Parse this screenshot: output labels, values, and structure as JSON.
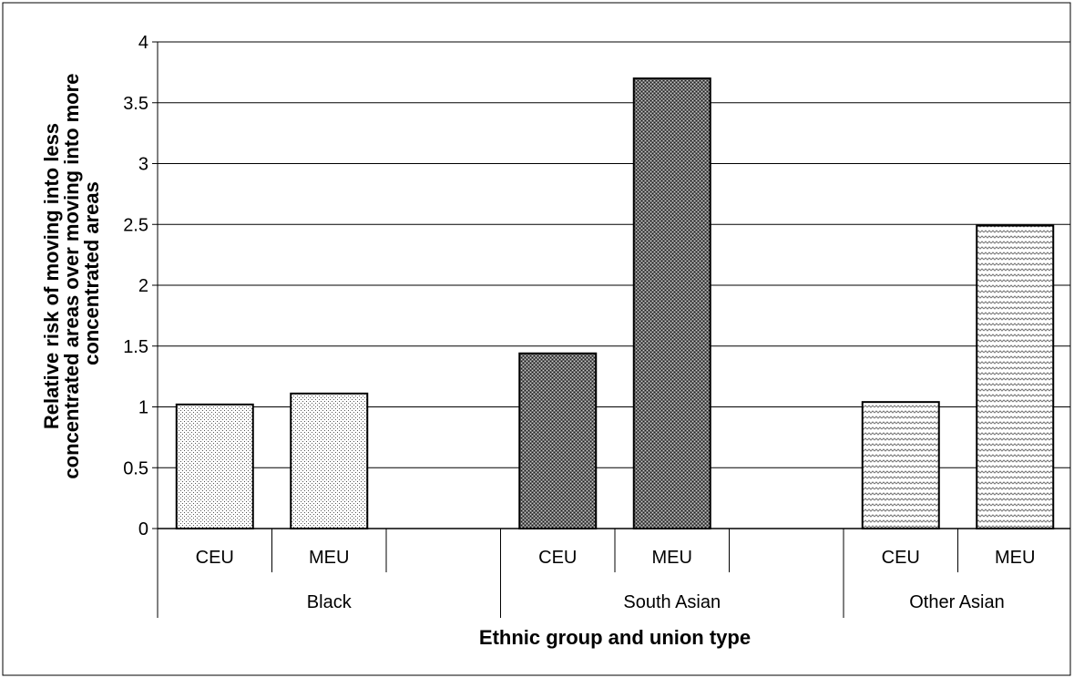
{
  "chart_data": {
    "type": "bar",
    "xlabel": "Ethnic group and union type",
    "ylabel": [
      "Relative risk of moving into less",
      "concentrated areas over moving into more",
      "concentrated areas"
    ],
    "ylim": [
      0,
      4
    ],
    "yticks": [
      "0",
      "0.5",
      "1",
      "1.5",
      "2",
      "2.5",
      "3",
      "3.5",
      "4"
    ],
    "grid": true,
    "legend": "none",
    "groups": [
      {
        "name": "Black",
        "categories": [
          "CEU",
          "MEU"
        ],
        "values": [
          1.02,
          1.11
        ],
        "pattern": "dots-light"
      },
      {
        "name": "South Asian",
        "categories": [
          "CEU",
          "MEU"
        ],
        "values": [
          1.44,
          3.7
        ],
        "pattern": "crosshatch-dark"
      },
      {
        "name": "Other Asian",
        "categories": [
          "CEU",
          "MEU"
        ],
        "values": [
          1.04,
          2.49
        ],
        "pattern": "waves"
      }
    ]
  }
}
